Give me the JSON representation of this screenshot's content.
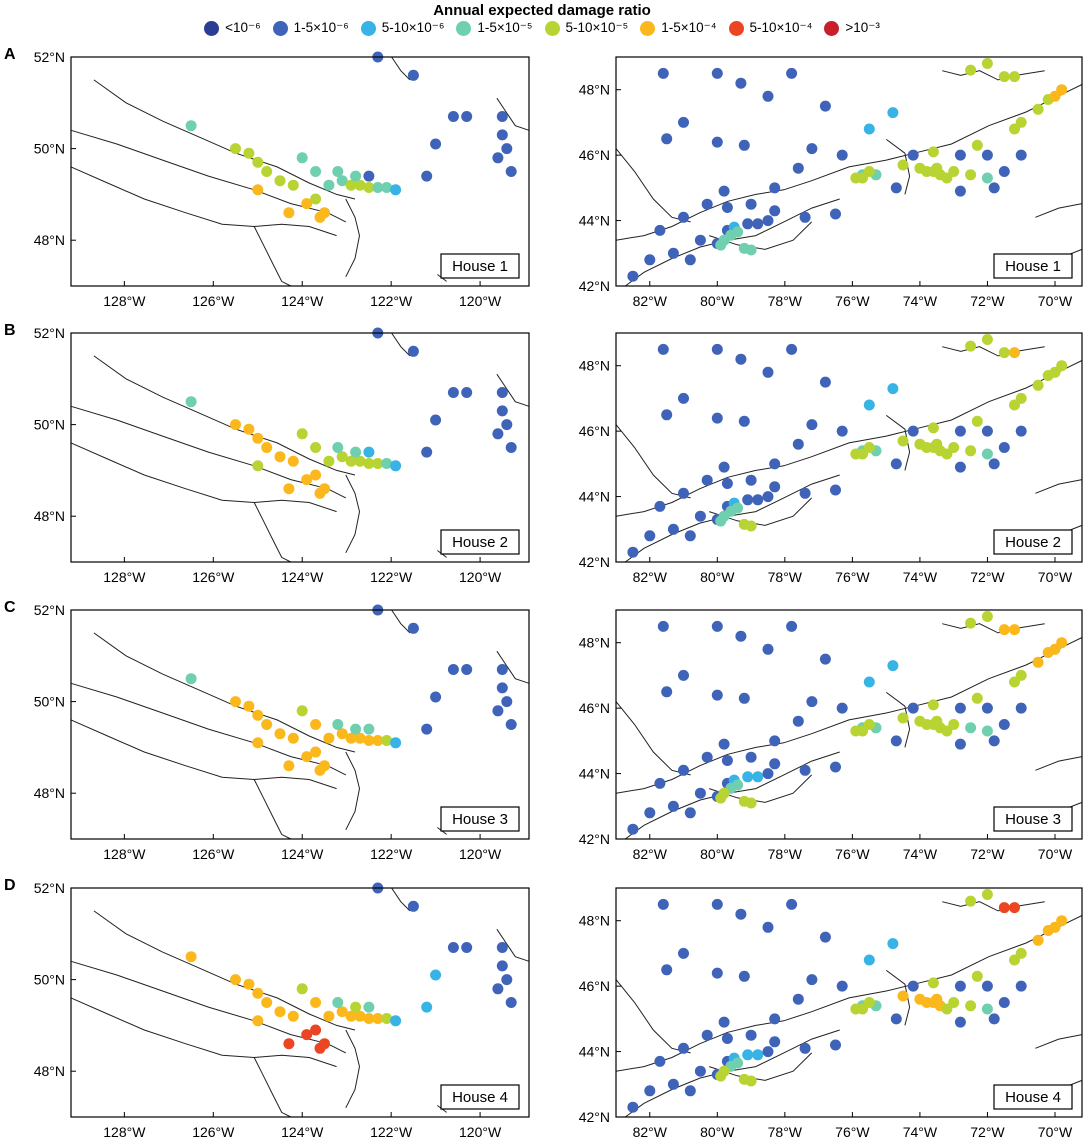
{
  "legend": {
    "title": "Annual expected damage ratio",
    "items": [
      {
        "label": "<10⁻⁶",
        "color": "#2b3e96"
      },
      {
        "label": "1-5×10⁻⁶",
        "color": "#3f63b8"
      },
      {
        "label": "5-10×10⁻⁶",
        "color": "#37b3e6"
      },
      {
        "label": "1-5×10⁻⁵",
        "color": "#6fcfae"
      },
      {
        "label": "5-10×10⁻⁵",
        "color": "#b8d432"
      },
      {
        "label": "1-5×10⁻⁴",
        "color": "#fbb81c"
      },
      {
        "label": "5-10×10⁻⁴",
        "color": "#ec4523"
      },
      {
        "label": ">10⁻³",
        "color": "#c8202a"
      }
    ]
  },
  "panels": [
    {
      "letter": "A",
      "house": "House 1"
    },
    {
      "letter": "B",
      "house": "House 2"
    },
    {
      "letter": "C",
      "house": "House 3"
    },
    {
      "letter": "D",
      "house": "House 4"
    }
  ],
  "west_map": {
    "lon_labels": [
      "128°W",
      "126°W",
      "124°W",
      "122°W",
      "120°W"
    ],
    "lon_values": [
      -128,
      -126,
      -124,
      -122,
      -120
    ],
    "lat_labels": [
      "52°N",
      "50°N",
      "48°N"
    ],
    "lat_values": [
      52,
      50,
      48
    ],
    "lon_range": [
      -129.2,
      -118.9
    ],
    "lat_range": [
      47.0,
      52.0
    ]
  },
  "east_map": {
    "lon_labels": [
      "82°W",
      "80°W",
      "78°W",
      "76°W",
      "74°W",
      "72°W",
      "70°W"
    ],
    "lon_values": [
      -82,
      -80,
      -78,
      -76,
      -74,
      -72,
      -70
    ],
    "lat_labels": [
      "48°N",
      "46°N",
      "44°N",
      "42°N"
    ],
    "lat_values": [
      48,
      46,
      44,
      42
    ],
    "lon_range": [
      -83.0,
      -69.2
    ],
    "lat_range": [
      42.0,
      49.0
    ]
  },
  "west_points": [
    {
      "lon": -122.3,
      "lat": 52.0,
      "c": [
        1,
        1,
        1,
        1
      ]
    },
    {
      "lon": -121.5,
      "lat": 51.6,
      "c": [
        1,
        1,
        1,
        1
      ]
    },
    {
      "lon": -120.6,
      "lat": 50.7,
      "c": [
        1,
        1,
        1,
        1
      ]
    },
    {
      "lon": -120.3,
      "lat": 50.7,
      "c": [
        1,
        1,
        1,
        1
      ]
    },
    {
      "lon": -119.5,
      "lat": 50.3,
      "c": [
        1,
        1,
        1,
        1
      ]
    },
    {
      "lon": -119.4,
      "lat": 50.0,
      "c": [
        1,
        1,
        1,
        1
      ]
    },
    {
      "lon": -119.6,
      "lat": 49.8,
      "c": [
        1,
        1,
        1,
        1
      ]
    },
    {
      "lon": -119.3,
      "lat": 49.5,
      "c": [
        1,
        1,
        1,
        1
      ]
    },
    {
      "lon": -119.5,
      "lat": 50.7,
      "c": [
        1,
        1,
        1,
        1
      ]
    },
    {
      "lon": -121.0,
      "lat": 50.1,
      "c": [
        1,
        1,
        1,
        2
      ]
    },
    {
      "lon": -121.2,
      "lat": 49.4,
      "c": [
        1,
        1,
        1,
        2
      ]
    },
    {
      "lon": -126.5,
      "lat": 50.5,
      "c": [
        3,
        3,
        3,
        5
      ]
    },
    {
      "lon": -125.5,
      "lat": 50.0,
      "c": [
        4,
        5,
        5,
        5
      ]
    },
    {
      "lon": -125.2,
      "lat": 49.9,
      "c": [
        4,
        5,
        5,
        5
      ]
    },
    {
      "lon": -125.0,
      "lat": 49.7,
      "c": [
        4,
        5,
        5,
        5
      ]
    },
    {
      "lon": -124.8,
      "lat": 49.5,
      "c": [
        4,
        5,
        5,
        5
      ]
    },
    {
      "lon": -124.5,
      "lat": 49.3,
      "c": [
        4,
        5,
        5,
        5
      ]
    },
    {
      "lon": -124.2,
      "lat": 49.2,
      "c": [
        4,
        5,
        5,
        5
      ]
    },
    {
      "lon": -124.0,
      "lat": 49.8,
      "c": [
        3,
        4,
        4,
        4
      ]
    },
    {
      "lon": -123.7,
      "lat": 49.5,
      "c": [
        3,
        4,
        5,
        5
      ]
    },
    {
      "lon": -125.0,
      "lat": 49.1,
      "c": [
        5,
        4,
        5,
        5
      ]
    },
    {
      "lon": -124.3,
      "lat": 48.6,
      "c": [
        5,
        5,
        5,
        6
      ]
    },
    {
      "lon": -123.9,
      "lat": 48.8,
      "c": [
        5,
        5,
        5,
        6
      ]
    },
    {
      "lon": -123.6,
      "lat": 48.5,
      "c": [
        5,
        5,
        5,
        6
      ]
    },
    {
      "lon": -123.5,
      "lat": 48.6,
      "c": [
        5,
        5,
        5,
        6
      ]
    },
    {
      "lon": -123.7,
      "lat": 48.9,
      "c": [
        4,
        5,
        5,
        6
      ]
    },
    {
      "lon": -123.4,
      "lat": 49.2,
      "c": [
        3,
        4,
        5,
        5
      ]
    },
    {
      "lon": -123.1,
      "lat": 49.3,
      "c": [
        3,
        4,
        5,
        5
      ]
    },
    {
      "lon": -122.9,
      "lat": 49.2,
      "c": [
        4,
        4,
        5,
        5
      ]
    },
    {
      "lon": -122.7,
      "lat": 49.2,
      "c": [
        4,
        4,
        5,
        5
      ]
    },
    {
      "lon": -122.5,
      "lat": 49.15,
      "c": [
        4,
        4,
        5,
        5
      ]
    },
    {
      "lon": -122.3,
      "lat": 49.15,
      "c": [
        3,
        4,
        5,
        5
      ]
    },
    {
      "lon": -122.1,
      "lat": 49.15,
      "c": [
        3,
        3,
        4,
        4
      ]
    },
    {
      "lon": -121.9,
      "lat": 49.1,
      "c": [
        2,
        2,
        2,
        2
      ]
    },
    {
      "lon": -123.2,
      "lat": 49.5,
      "c": [
        3,
        3,
        3,
        3
      ]
    },
    {
      "lon": -122.8,
      "lat": 49.4,
      "c": [
        3,
        3,
        3,
        4
      ]
    },
    {
      "lon": -122.5,
      "lat": 49.4,
      "c": [
        1,
        2,
        3,
        3
      ]
    }
  ],
  "east_points": [
    {
      "lon": -81.6,
      "lat": 48.5,
      "c": [
        1,
        1,
        1,
        1
      ]
    },
    {
      "lon": -80.0,
      "lat": 48.5,
      "c": [
        1,
        1,
        1,
        1
      ]
    },
    {
      "lon": -79.3,
      "lat": 48.2,
      "c": [
        1,
        1,
        1,
        1
      ]
    },
    {
      "lon": -78.5,
      "lat": 47.8,
      "c": [
        1,
        1,
        1,
        1
      ]
    },
    {
      "lon": -77.8,
      "lat": 48.5,
      "c": [
        1,
        1,
        1,
        1
      ]
    },
    {
      "lon": -76.8,
      "lat": 47.5,
      "c": [
        1,
        1,
        1,
        1
      ]
    },
    {
      "lon": -81.0,
      "lat": 47.0,
      "c": [
        1,
        1,
        1,
        1
      ]
    },
    {
      "lon": -80.0,
      "lat": 46.4,
      "c": [
        1,
        1,
        1,
        1
      ]
    },
    {
      "lon": -79.2,
      "lat": 46.3,
      "c": [
        1,
        1,
        1,
        1
      ]
    },
    {
      "lon": -81.5,
      "lat": 46.5,
      "c": [
        1,
        1,
        1,
        1
      ]
    },
    {
      "lon": -77.2,
      "lat": 46.2,
      "c": [
        1,
        1,
        1,
        1
      ]
    },
    {
      "lon": -75.5,
      "lat": 46.8,
      "c": [
        2,
        2,
        2,
        2
      ]
    },
    {
      "lon": -74.8,
      "lat": 47.3,
      "c": [
        2,
        2,
        2,
        2
      ]
    },
    {
      "lon": -75.3,
      "lat": 45.4,
      "c": [
        3,
        3,
        3,
        3
      ]
    },
    {
      "lon": -75.7,
      "lat": 45.4,
      "c": [
        3,
        3,
        3,
        3
      ]
    },
    {
      "lon": -76.5,
      "lat": 44.2,
      "c": [
        1,
        1,
        1,
        1
      ]
    },
    {
      "lon": -77.4,
      "lat": 44.1,
      "c": [
        1,
        1,
        1,
        1
      ]
    },
    {
      "lon": -78.3,
      "lat": 44.3,
      "c": [
        1,
        1,
        1,
        1
      ]
    },
    {
      "lon": -82.5,
      "lat": 42.3,
      "c": [
        1,
        1,
        1,
        1
      ]
    },
    {
      "lon": -82.0,
      "lat": 42.8,
      "c": [
        1,
        1,
        1,
        1
      ]
    },
    {
      "lon": -81.3,
      "lat": 43.0,
      "c": [
        1,
        1,
        1,
        1
      ]
    },
    {
      "lon": -81.7,
      "lat": 43.7,
      "c": [
        1,
        1,
        1,
        1
      ]
    },
    {
      "lon": -81.0,
      "lat": 44.1,
      "c": [
        1,
        1,
        1,
        1
      ]
    },
    {
      "lon": -80.5,
      "lat": 43.4,
      "c": [
        1,
        1,
        1,
        1
      ]
    },
    {
      "lon": -80.3,
      "lat": 44.5,
      "c": [
        1,
        1,
        1,
        1
      ]
    },
    {
      "lon": -79.8,
      "lat": 44.9,
      "c": [
        1,
        1,
        1,
        1
      ]
    },
    {
      "lon": -79.7,
      "lat": 43.7,
      "c": [
        1,
        1,
        1,
        1
      ]
    },
    {
      "lon": -80.0,
      "lat": 43.3,
      "c": [
        1,
        1,
        1,
        1
      ]
    },
    {
      "lon": -80.8,
      "lat": 42.8,
      "c": [
        1,
        1,
        1,
        1
      ]
    },
    {
      "lon": -79.5,
      "lat": 43.8,
      "c": [
        2,
        2,
        2,
        2
      ]
    },
    {
      "lon": -79.4,
      "lat": 43.65,
      "c": [
        3,
        3,
        3,
        3
      ]
    },
    {
      "lon": -79.6,
      "lat": 43.55,
      "c": [
        3,
        3,
        3,
        3
      ]
    },
    {
      "lon": -79.8,
      "lat": 43.4,
      "c": [
        3,
        3,
        4,
        4
      ]
    },
    {
      "lon": -79.9,
      "lat": 43.25,
      "c": [
        3,
        3,
        4,
        4
      ]
    },
    {
      "lon": -79.2,
      "lat": 43.15,
      "c": [
        3,
        4,
        4,
        4
      ]
    },
    {
      "lon": -79.0,
      "lat": 43.1,
      "c": [
        3,
        4,
        4,
        4
      ]
    },
    {
      "lon": -79.1,
      "lat": 43.9,
      "c": [
        1,
        1,
        2,
        2
      ]
    },
    {
      "lon": -78.8,
      "lat": 43.9,
      "c": [
        1,
        1,
        2,
        2
      ]
    },
    {
      "lon": -78.5,
      "lat": 44.0,
      "c": [
        1,
        1,
        1,
        1
      ]
    },
    {
      "lon": -79.7,
      "lat": 44.4,
      "c": [
        1,
        1,
        1,
        1
      ]
    },
    {
      "lon": -79.0,
      "lat": 44.5,
      "c": [
        1,
        1,
        1,
        1
      ]
    },
    {
      "lon": -78.3,
      "lat": 45.0,
      "c": [
        1,
        1,
        1,
        1
      ]
    },
    {
      "lon": -75.7,
      "lat": 45.3,
      "c": [
        4,
        4,
        4,
        4
      ]
    },
    {
      "lon": -75.9,
      "lat": 45.3,
      "c": [
        4,
        4,
        4,
        4
      ]
    },
    {
      "lon": -75.5,
      "lat": 45.5,
      "c": [
        4,
        4,
        4,
        4
      ]
    },
    {
      "lon": -74.5,
      "lat": 45.7,
      "c": [
        4,
        4,
        4,
        5
      ]
    },
    {
      "lon": -74.0,
      "lat": 45.6,
      "c": [
        4,
        4,
        4,
        5
      ]
    },
    {
      "lon": -73.8,
      "lat": 45.5,
      "c": [
        4,
        4,
        4,
        5
      ]
    },
    {
      "lon": -73.6,
      "lat": 45.5,
      "c": [
        4,
        4,
        4,
        5
      ]
    },
    {
      "lon": -73.5,
      "lat": 45.6,
      "c": [
        4,
        4,
        4,
        5
      ]
    },
    {
      "lon": -73.4,
      "lat": 45.4,
      "c": [
        4,
        4,
        4,
        5
      ]
    },
    {
      "lon": -73.2,
      "lat": 45.3,
      "c": [
        4,
        4,
        4,
        4
      ]
    },
    {
      "lon": -73.0,
      "lat": 45.5,
      "c": [
        4,
        4,
        4,
        4
      ]
    },
    {
      "lon": -72.5,
      "lat": 45.4,
      "c": [
        4,
        4,
        3,
        4
      ]
    },
    {
      "lon": -72.0,
      "lat": 45.3,
      "c": [
        3,
        3,
        3,
        3
      ]
    },
    {
      "lon": -71.8,
      "lat": 45.0,
      "c": [
        1,
        1,
        1,
        1
      ]
    },
    {
      "lon": -72.3,
      "lat": 46.3,
      "c": [
        4,
        4,
        4,
        4
      ]
    },
    {
      "lon": -71.2,
      "lat": 46.8,
      "c": [
        4,
        4,
        4,
        4
      ]
    },
    {
      "lon": -71.0,
      "lat": 47.0,
      "c": [
        4,
        4,
        4,
        4
      ]
    },
    {
      "lon": -70.5,
      "lat": 47.4,
      "c": [
        4,
        4,
        5,
        5
      ]
    },
    {
      "lon": -70.2,
      "lat": 47.7,
      "c": [
        4,
        4,
        5,
        5
      ]
    },
    {
      "lon": -71.5,
      "lat": 48.4,
      "c": [
        4,
        4,
        5,
        6
      ]
    },
    {
      "lon": -71.2,
      "lat": 48.4,
      "c": [
        4,
        5,
        5,
        6
      ]
    },
    {
      "lon": -72.0,
      "lat": 48.8,
      "c": [
        4,
        4,
        4,
        4
      ]
    },
    {
      "lon": -72.5,
      "lat": 48.6,
      "c": [
        4,
        4,
        4,
        4
      ]
    },
    {
      "lon": -69.8,
      "lat": 48.0,
      "c": [
        5,
        4,
        5,
        5
      ]
    },
    {
      "lon": -70.0,
      "lat": 47.8,
      "c": [
        5,
        4,
        5,
        5
      ]
    },
    {
      "lon": -73.6,
      "lat": 46.1,
      "c": [
        4,
        4,
        4,
        4
      ]
    },
    {
      "lon": -74.2,
      "lat": 46.0,
      "c": [
        1,
        1,
        1,
        1
      ]
    },
    {
      "lon": -72.8,
      "lat": 46.0,
      "c": [
        1,
        1,
        1,
        1
      ]
    },
    {
      "lon": -72.0,
      "lat": 46.0,
      "c": [
        1,
        1,
        1,
        1
      ]
    },
    {
      "lon": -71.5,
      "lat": 45.5,
      "c": [
        1,
        1,
        1,
        1
      ]
    },
    {
      "lon": -71.0,
      "lat": 46.0,
      "c": [
        1,
        1,
        1,
        1
      ]
    },
    {
      "lon": -72.8,
      "lat": 44.9,
      "c": [
        1,
        1,
        1,
        1
      ]
    },
    {
      "lon": -74.7,
      "lat": 45.0,
      "c": [
        1,
        1,
        1,
        1
      ]
    },
    {
      "lon": -76.3,
      "lat": 46.0,
      "c": [
        1,
        1,
        1,
        1
      ]
    },
    {
      "lon": -77.6,
      "lat": 45.6,
      "c": [
        1,
        1,
        1,
        1
      ]
    }
  ]
}
